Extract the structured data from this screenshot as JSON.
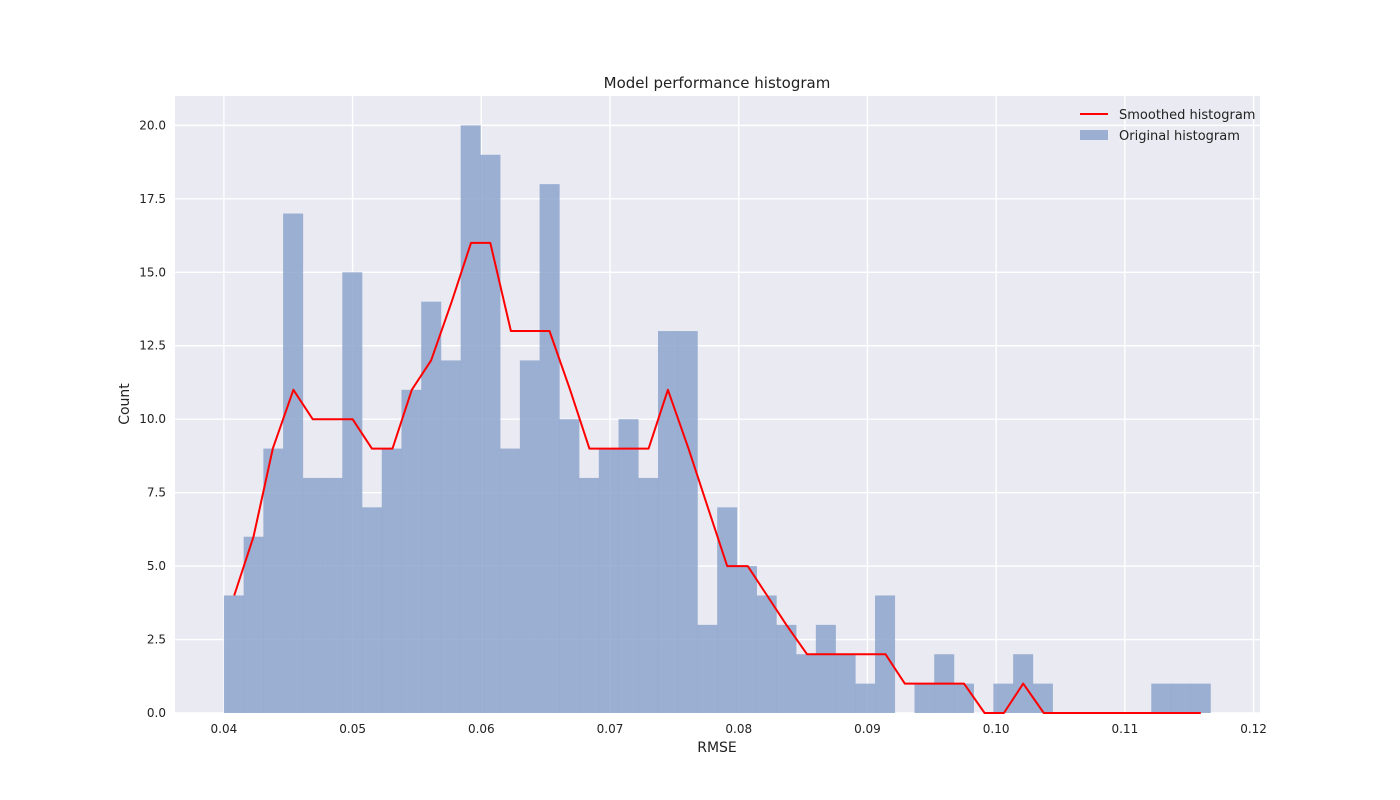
{
  "chart_data": {
    "type": "bar",
    "title": "Model performance histogram",
    "xlabel": "RMSE",
    "ylabel": "Count",
    "xlim": [
      0.0362,
      0.1205
    ],
    "ylim": [
      0,
      21
    ],
    "x_ticks": [
      0.04,
      0.05,
      0.06,
      0.07,
      0.08,
      0.09,
      0.1,
      0.11,
      0.12
    ],
    "x_tick_labels": [
      "0.04",
      "0.05",
      "0.06",
      "0.07",
      "0.08",
      "0.09",
      "0.10",
      "0.11",
      "0.12"
    ],
    "y_ticks": [
      0,
      2.5,
      5,
      7.5,
      10,
      12.5,
      15,
      17.5,
      20
    ],
    "y_tick_labels": [
      "0.0",
      "2.5",
      "5.0",
      "7.5",
      "10.0",
      "12.5",
      "15.0",
      "17.5",
      "20.0"
    ],
    "grid": true,
    "legend": "top-right",
    "bin_start": 0.04,
    "bin_width": 0.001533,
    "series": [
      {
        "name": "Original histogram",
        "type": "bar",
        "color": "#8da4cc",
        "values": [
          4,
          6,
          9,
          17,
          8,
          8,
          15,
          7,
          9,
          11,
          14,
          12,
          20,
          19,
          9,
          12,
          18,
          10,
          8,
          9,
          10,
          8,
          13,
          13,
          3,
          7,
          5,
          4,
          3,
          2,
          3,
          2,
          1,
          4,
          0,
          1,
          2,
          1,
          0,
          1,
          2,
          1,
          0,
          0,
          0,
          0,
          0,
          1,
          1,
          1
        ]
      },
      {
        "name": "Smoothed histogram",
        "type": "line",
        "color": "#ff0000",
        "x": [
          0.0408,
          0.0423,
          0.0438,
          0.0454,
          0.0469,
          0.0485,
          0.05,
          0.0515,
          0.0531,
          0.0546,
          0.0561,
          0.0577,
          0.0592,
          0.0607,
          0.0623,
          0.0638,
          0.0653,
          0.0669,
          0.0684,
          0.0699,
          0.0715,
          0.073,
          0.0745,
          0.0761,
          0.0776,
          0.0791,
          0.0807,
          0.0822,
          0.0837,
          0.0853,
          0.0868,
          0.0883,
          0.0899,
          0.0914,
          0.0929,
          0.0945,
          0.096,
          0.0975,
          0.0991,
          0.1006,
          0.1021,
          0.1037,
          0.1052,
          0.1067,
          0.1083,
          0.1098,
          0.1113,
          0.1129,
          0.1144,
          0.1159
        ],
        "values": [
          4,
          6,
          9,
          11,
          10,
          10,
          10,
          9,
          9,
          11,
          12,
          14,
          16,
          16,
          13,
          13,
          13,
          11,
          9,
          9,
          9,
          9,
          11,
          9,
          7,
          5,
          5,
          4,
          3,
          2,
          2,
          2,
          2,
          2,
          1,
          1,
          1,
          1,
          0,
          0,
          1,
          0,
          0,
          0,
          0,
          0,
          0,
          0,
          0,
          0
        ]
      }
    ]
  }
}
